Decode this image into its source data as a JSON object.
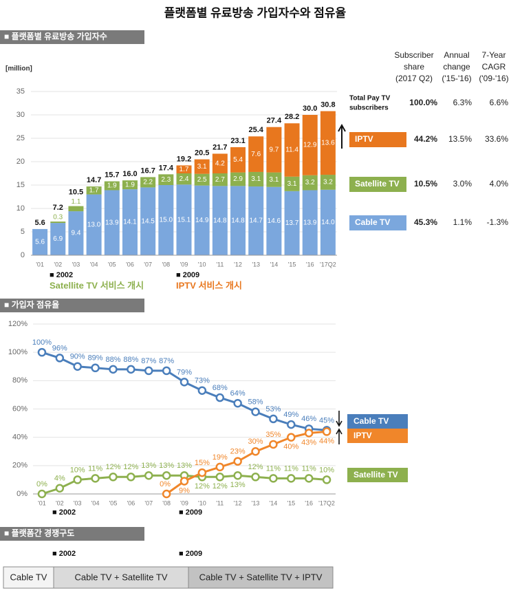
{
  "title": "플랫폼별 유료방송 가입자수와 점유율",
  "sections": [
    "■ 플랫폼별 유료방송 가입자수",
    "■ 가입자 점유율",
    "■ 플랫폼간 경쟁구도"
  ],
  "chart_data": [
    {
      "type": "stacked_bar",
      "y_label": "[million]",
      "categories": [
        "'01",
        "'02",
        "'03",
        "'04",
        "'05",
        "'06",
        "'07",
        "'08",
        "'09",
        "'10",
        "'11",
        "'12",
        "'13",
        "'14",
        "'15",
        "'16",
        "'17Q2"
      ],
      "ylim": [
        0,
        35
      ],
      "yticks": [
        0,
        5,
        10,
        15,
        20,
        25,
        30,
        35
      ],
      "grid": true,
      "series": [
        {
          "name": "Cable TV",
          "color": "#7ba7dd",
          "values": [
            5.6,
            6.9,
            9.4,
            13.0,
            13.9,
            14.1,
            14.5,
            15.0,
            15.1,
            14.9,
            14.8,
            14.8,
            14.7,
            14.6,
            13.7,
            13.9,
            14.0
          ],
          "value_labels": [
            "5.6",
            "6.9",
            "9.4",
            "13.0",
            "13.9",
            "14.1",
            "14.5",
            "15.0",
            "15.1",
            "14.9",
            "14.8",
            "14.8",
            "14.7",
            "14.6",
            "13.7",
            "13.9",
            "14.0"
          ]
        },
        {
          "name": "Satellite TV",
          "color": "#8db04e",
          "values": [
            null,
            0.3,
            1.1,
            1.7,
            1.9,
            1.9,
            2.2,
            2.3,
            2.4,
            2.5,
            2.7,
            2.9,
            3.1,
            3.1,
            3.1,
            3.2,
            3.2
          ],
          "value_labels": [
            null,
            "0.3",
            "1.1",
            "1.7",
            "1.9",
            "1.9",
            "2.2",
            "2.3",
            "2.4",
            "2.5",
            "2.7",
            "2.9",
            "3.1",
            "3.1",
            "3.1",
            "3.2",
            "3.2"
          ]
        },
        {
          "name": "IPTV",
          "color": "#e8771e",
          "values": [
            null,
            null,
            null,
            null,
            null,
            null,
            null,
            null,
            1.7,
            3.1,
            4.2,
            5.4,
            7.6,
            9.7,
            11.4,
            12.9,
            13.6
          ],
          "value_labels": [
            null,
            null,
            null,
            null,
            null,
            null,
            null,
            null,
            "1.7",
            "3.1",
            "4.2",
            "5.4",
            "7.6",
            "9.7",
            "11.4",
            "12.9",
            "13.6"
          ]
        }
      ],
      "total_labels": [
        "5.6",
        "7.2",
        "10.5",
        "14.7",
        "15.7",
        "16.0",
        "16.7",
        "17.4",
        "19.2",
        "20.5",
        "21.7",
        "23.1",
        "25.4",
        "27.4",
        "28.2",
        "30.0",
        "30.8"
      ],
      "annotations": [
        {
          "text": "■ 2002",
          "note": "Satellite TV 서비스 개시"
        },
        {
          "text": "■ 2009",
          "note": "IPTV 서비스 개시"
        }
      ]
    },
    {
      "type": "line",
      "categories": [
        "'01",
        "'02",
        "'03",
        "'04",
        "'05",
        "'06",
        "'07",
        "'08",
        "'09",
        "'10",
        "'11",
        "'12",
        "'13",
        "'14",
        "'15",
        "'16",
        "'17Q2"
      ],
      "ylim": [
        0,
        120
      ],
      "yticks": [
        {
          "value": 0,
          "label": "0%"
        },
        {
          "value": 20,
          "label": "20%"
        },
        {
          "value": 40,
          "label": "40%"
        },
        {
          "value": 60,
          "label": "60%"
        },
        {
          "value": 80,
          "label": "80%"
        },
        {
          "value": 100,
          "label": "100%"
        },
        {
          "value": 120,
          "label": "120%"
        }
      ],
      "grid": true,
      "series": [
        {
          "name": "Cable TV",
          "color": "#4a7ebb",
          "values": [
            100,
            96,
            90,
            89,
            88,
            88,
            87,
            87,
            79,
            73,
            68,
            64,
            58,
            53,
            49,
            46,
            45
          ],
          "value_labels": [
            "100%",
            "96%",
            "90%",
            "89%",
            "88%",
            "88%",
            "87%",
            "87%",
            "79%",
            "73%",
            "68%",
            "64%",
            "58%",
            "53%",
            "49%",
            "46%",
            "45%"
          ]
        },
        {
          "name": "Satellite TV",
          "color": "#8db04e",
          "values": [
            0,
            4,
            10,
            11,
            12,
            12,
            13,
            13,
            13,
            12,
            12,
            13,
            12,
            11,
            11,
            11,
            10
          ],
          "value_labels": [
            "0%",
            "4%",
            "10%",
            "11%",
            "12%",
            "12%",
            "13%",
            "13%",
            "13%",
            "12%",
            "12%",
            "13%",
            "12%",
            "11%",
            "11%",
            "11%",
            "10%"
          ]
        },
        {
          "name": "IPTV",
          "color": "#f0862a",
          "values": [
            null,
            null,
            null,
            null,
            null,
            null,
            null,
            0,
            9,
            15,
            19,
            23,
            30,
            35,
            40,
            43,
            44
          ],
          "value_labels": [
            null,
            null,
            null,
            null,
            null,
            null,
            null,
            "0%",
            "9%",
            "15%",
            "19%",
            "23%",
            "30%",
            "35%",
            "40%",
            "43%",
            "44%"
          ]
        }
      ],
      "annotations": [
        "■ 2002",
        "■ 2009"
      ]
    }
  ],
  "share_table": {
    "headers": [
      [
        "Subscriber",
        "share",
        "(2017 Q2)"
      ],
      [
        "Annual",
        "change",
        "('15-'16)"
      ],
      [
        "7-Year",
        "CAGR",
        "('09-'16)"
      ]
    ],
    "rows": [
      {
        "name": [
          "Total Pay TV",
          "subscribers"
        ],
        "values": [
          "100.0%",
          "6.3%",
          "6.6%"
        ]
      },
      {
        "values": [
          "44.2%",
          "13.5%",
          "33.6%"
        ]
      },
      {
        "values": [
          "10.5%",
          "3.0%",
          "4.0%"
        ]
      },
      {
        "values": [
          "45.3%",
          "1.1%",
          "-1.3%"
        ]
      }
    ]
  },
  "timeline": {
    "markers": [
      "■ 2002",
      "■ 2009"
    ],
    "stages": [
      "Cable TV",
      "Cable TV + Satellite TV",
      "Cable TV + Satellite TV + IPTV"
    ]
  }
}
